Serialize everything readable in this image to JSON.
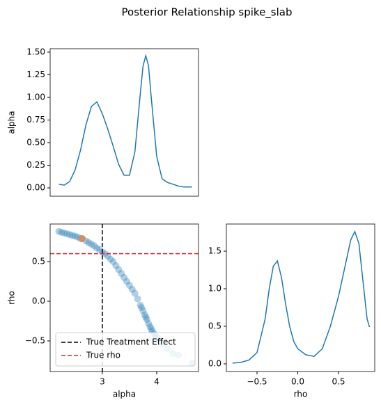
{
  "title": "Posterior Relationship spike_slab",
  "chart_data": [
    {
      "type": "line",
      "ylabel": "alpha",
      "x": [
        2.2,
        2.3,
        2.4,
        2.5,
        2.6,
        2.7,
        2.8,
        2.9,
        3.0,
        3.1,
        3.2,
        3.3,
        3.4,
        3.5,
        3.6,
        3.7,
        3.75,
        3.8,
        3.85,
        3.9,
        4.0,
        4.1,
        4.2,
        4.3,
        4.4,
        4.5,
        4.65
      ],
      "series": [
        {
          "color": "#1f77b4",
          "values": [
            0.04,
            0.03,
            0.07,
            0.2,
            0.42,
            0.7,
            0.9,
            0.95,
            0.82,
            0.65,
            0.46,
            0.26,
            0.14,
            0.14,
            0.4,
            1.05,
            1.35,
            1.46,
            1.35,
            1.0,
            0.35,
            0.1,
            0.06,
            0.04,
            0.02,
            0.01,
            0.01
          ]
        }
      ],
      "xlim": [
        2.04,
        4.77
      ],
      "ylim": [
        -0.092,
        1.538
      ],
      "yticks": [
        {
          "value": 0,
          "label": "0.00"
        },
        {
          "value": 0.25,
          "label": "0.25"
        },
        {
          "value": 0.5,
          "label": "0.50"
        },
        {
          "value": 0.75,
          "label": "0.75"
        },
        {
          "value": 1,
          "label": "1.00"
        },
        {
          "value": 1.25,
          "label": "1.25"
        },
        {
          "value": 1.5,
          "label": "1.50"
        }
      ]
    },
    {
      "type": "scatter",
      "xlabel": "alpha",
      "ylabel": "rho",
      "series": [
        {
          "color": "#1f77b4",
          "x": [
            2.2,
            2.25,
            2.3,
            2.35,
            2.4,
            2.45,
            2.5,
            2.55,
            2.6,
            2.7,
            2.75,
            2.8,
            2.85,
            2.9,
            2.95,
            3.0,
            3.05,
            3.1,
            3.15,
            3.2,
            3.25,
            3.3,
            3.35,
            3.4,
            3.45,
            3.5,
            3.55,
            3.6,
            3.65,
            3.7,
            3.72,
            3.75,
            3.78,
            3.8,
            3.82,
            3.85,
            3.88,
            3.9,
            3.92,
            3.95,
            3.98,
            4.0,
            4.05,
            4.1,
            4.2,
            4.3,
            4.4,
            4.65
          ],
          "values": [
            0.88,
            0.87,
            0.86,
            0.85,
            0.84,
            0.83,
            0.82,
            0.81,
            0.79,
            0.76,
            0.74,
            0.72,
            0.7,
            0.67,
            0.65,
            0.62,
            0.6,
            0.57,
            0.53,
            0.5,
            0.45,
            0.4,
            0.35,
            0.3,
            0.25,
            0.2,
            0.15,
            0.1,
            0.03,
            -0.05,
            -0.08,
            -0.12,
            -0.17,
            -0.2,
            -0.23,
            -0.28,
            -0.32,
            -0.35,
            -0.38,
            -0.41,
            -0.44,
            -0.46,
            -0.5,
            -0.54,
            -0.6,
            -0.66,
            -0.68,
            -0.78
          ]
        },
        {
          "color": "#dd8452",
          "x": [
            2.63
          ],
          "values": [
            0.79
          ]
        }
      ],
      "reference_lines": [
        {
          "name": "True Treatment Effect",
          "axis": "x",
          "value": 3,
          "color": "#000000"
        },
        {
          "name": "True rho",
          "axis": "y",
          "value": 0.6,
          "color": "#d62728"
        }
      ],
      "legend": "lower left",
      "xlim": [
        2.04,
        4.77
      ],
      "ylim": [
        -0.886,
        0.974
      ],
      "xticks": [
        3,
        4
      ],
      "yticks": [
        {
          "value": -0.5,
          "label": "−0.5"
        },
        {
          "value": 0,
          "label": "0.0"
        },
        0.5
      ]
    },
    {
      "type": "line",
      "xlabel": "rho",
      "x": [
        -0.8,
        -0.7,
        -0.6,
        -0.5,
        -0.4,
        -0.35,
        -0.3,
        -0.25,
        -0.2,
        -0.15,
        -0.1,
        -0.05,
        0.0,
        0.1,
        0.2,
        0.3,
        0.4,
        0.5,
        0.6,
        0.65,
        0.7,
        0.75,
        0.8,
        0.85,
        0.88
      ],
      "series": [
        {
          "color": "#1f77b4",
          "values": [
            0.01,
            0.02,
            0.05,
            0.15,
            0.6,
            1.0,
            1.3,
            1.37,
            1.15,
            0.8,
            0.5,
            0.3,
            0.2,
            0.12,
            0.1,
            0.2,
            0.5,
            0.9,
            1.4,
            1.65,
            1.76,
            1.6,
            1.1,
            0.6,
            0.49
          ]
        }
      ],
      "xlim": [
        -0.876,
        0.944
      ],
      "ylim": [
        -0.102,
        1.861
      ],
      "xticks": [
        {
          "value": -0.5,
          "label": "−0.5"
        },
        {
          "value": 0,
          "label": "0.0"
        },
        0.5
      ],
      "yticks": [
        {
          "value": 0,
          "label": "0.0"
        },
        0.5,
        {
          "value": 1,
          "label": "1.0"
        },
        1.5
      ]
    }
  ]
}
